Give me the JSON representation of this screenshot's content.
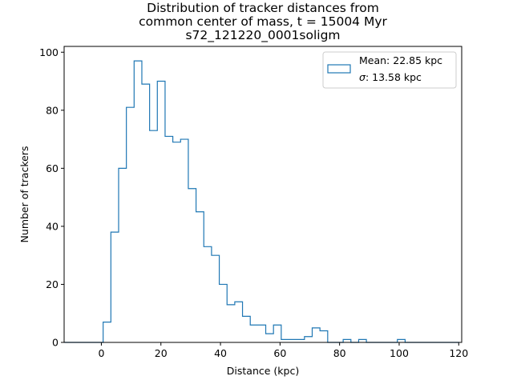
{
  "chart_data": {
    "type": "histogram",
    "title_lines": [
      "Distribution of tracker distances from",
      "common center of mass, t = 15004 Myr",
      "s72_121220_0001soligm"
    ],
    "xlabel": "Distance (kpc)",
    "ylabel": "Number of trackers",
    "xlim": [
      -12.5,
      121
    ],
    "ylim": [
      0,
      102
    ],
    "xticks": [
      0,
      20,
      40,
      60,
      80,
      100,
      120
    ],
    "yticks": [
      0,
      20,
      40,
      60,
      80,
      100
    ],
    "legend": {
      "position": "upper right",
      "mean_label": "Mean: 22.85 kpc",
      "sigma_symbol": "σ",
      "sigma_label": ": 13.58 kpc"
    },
    "color": "#1f77b4",
    "bin_width": 2.6,
    "bin_start": -12.4,
    "counts": [
      0,
      0,
      0,
      0,
      0,
      7,
      38,
      60,
      81,
      97,
      89,
      73,
      90,
      71,
      69,
      70,
      53,
      45,
      33,
      30,
      20,
      13,
      14,
      9,
      6,
      6,
      3,
      6,
      1,
      1,
      1,
      2,
      5,
      4,
      0,
      0,
      1,
      0,
      1,
      0,
      0,
      0,
      0,
      1,
      0,
      0,
      0,
      0,
      0,
      0,
      0
    ]
  }
}
